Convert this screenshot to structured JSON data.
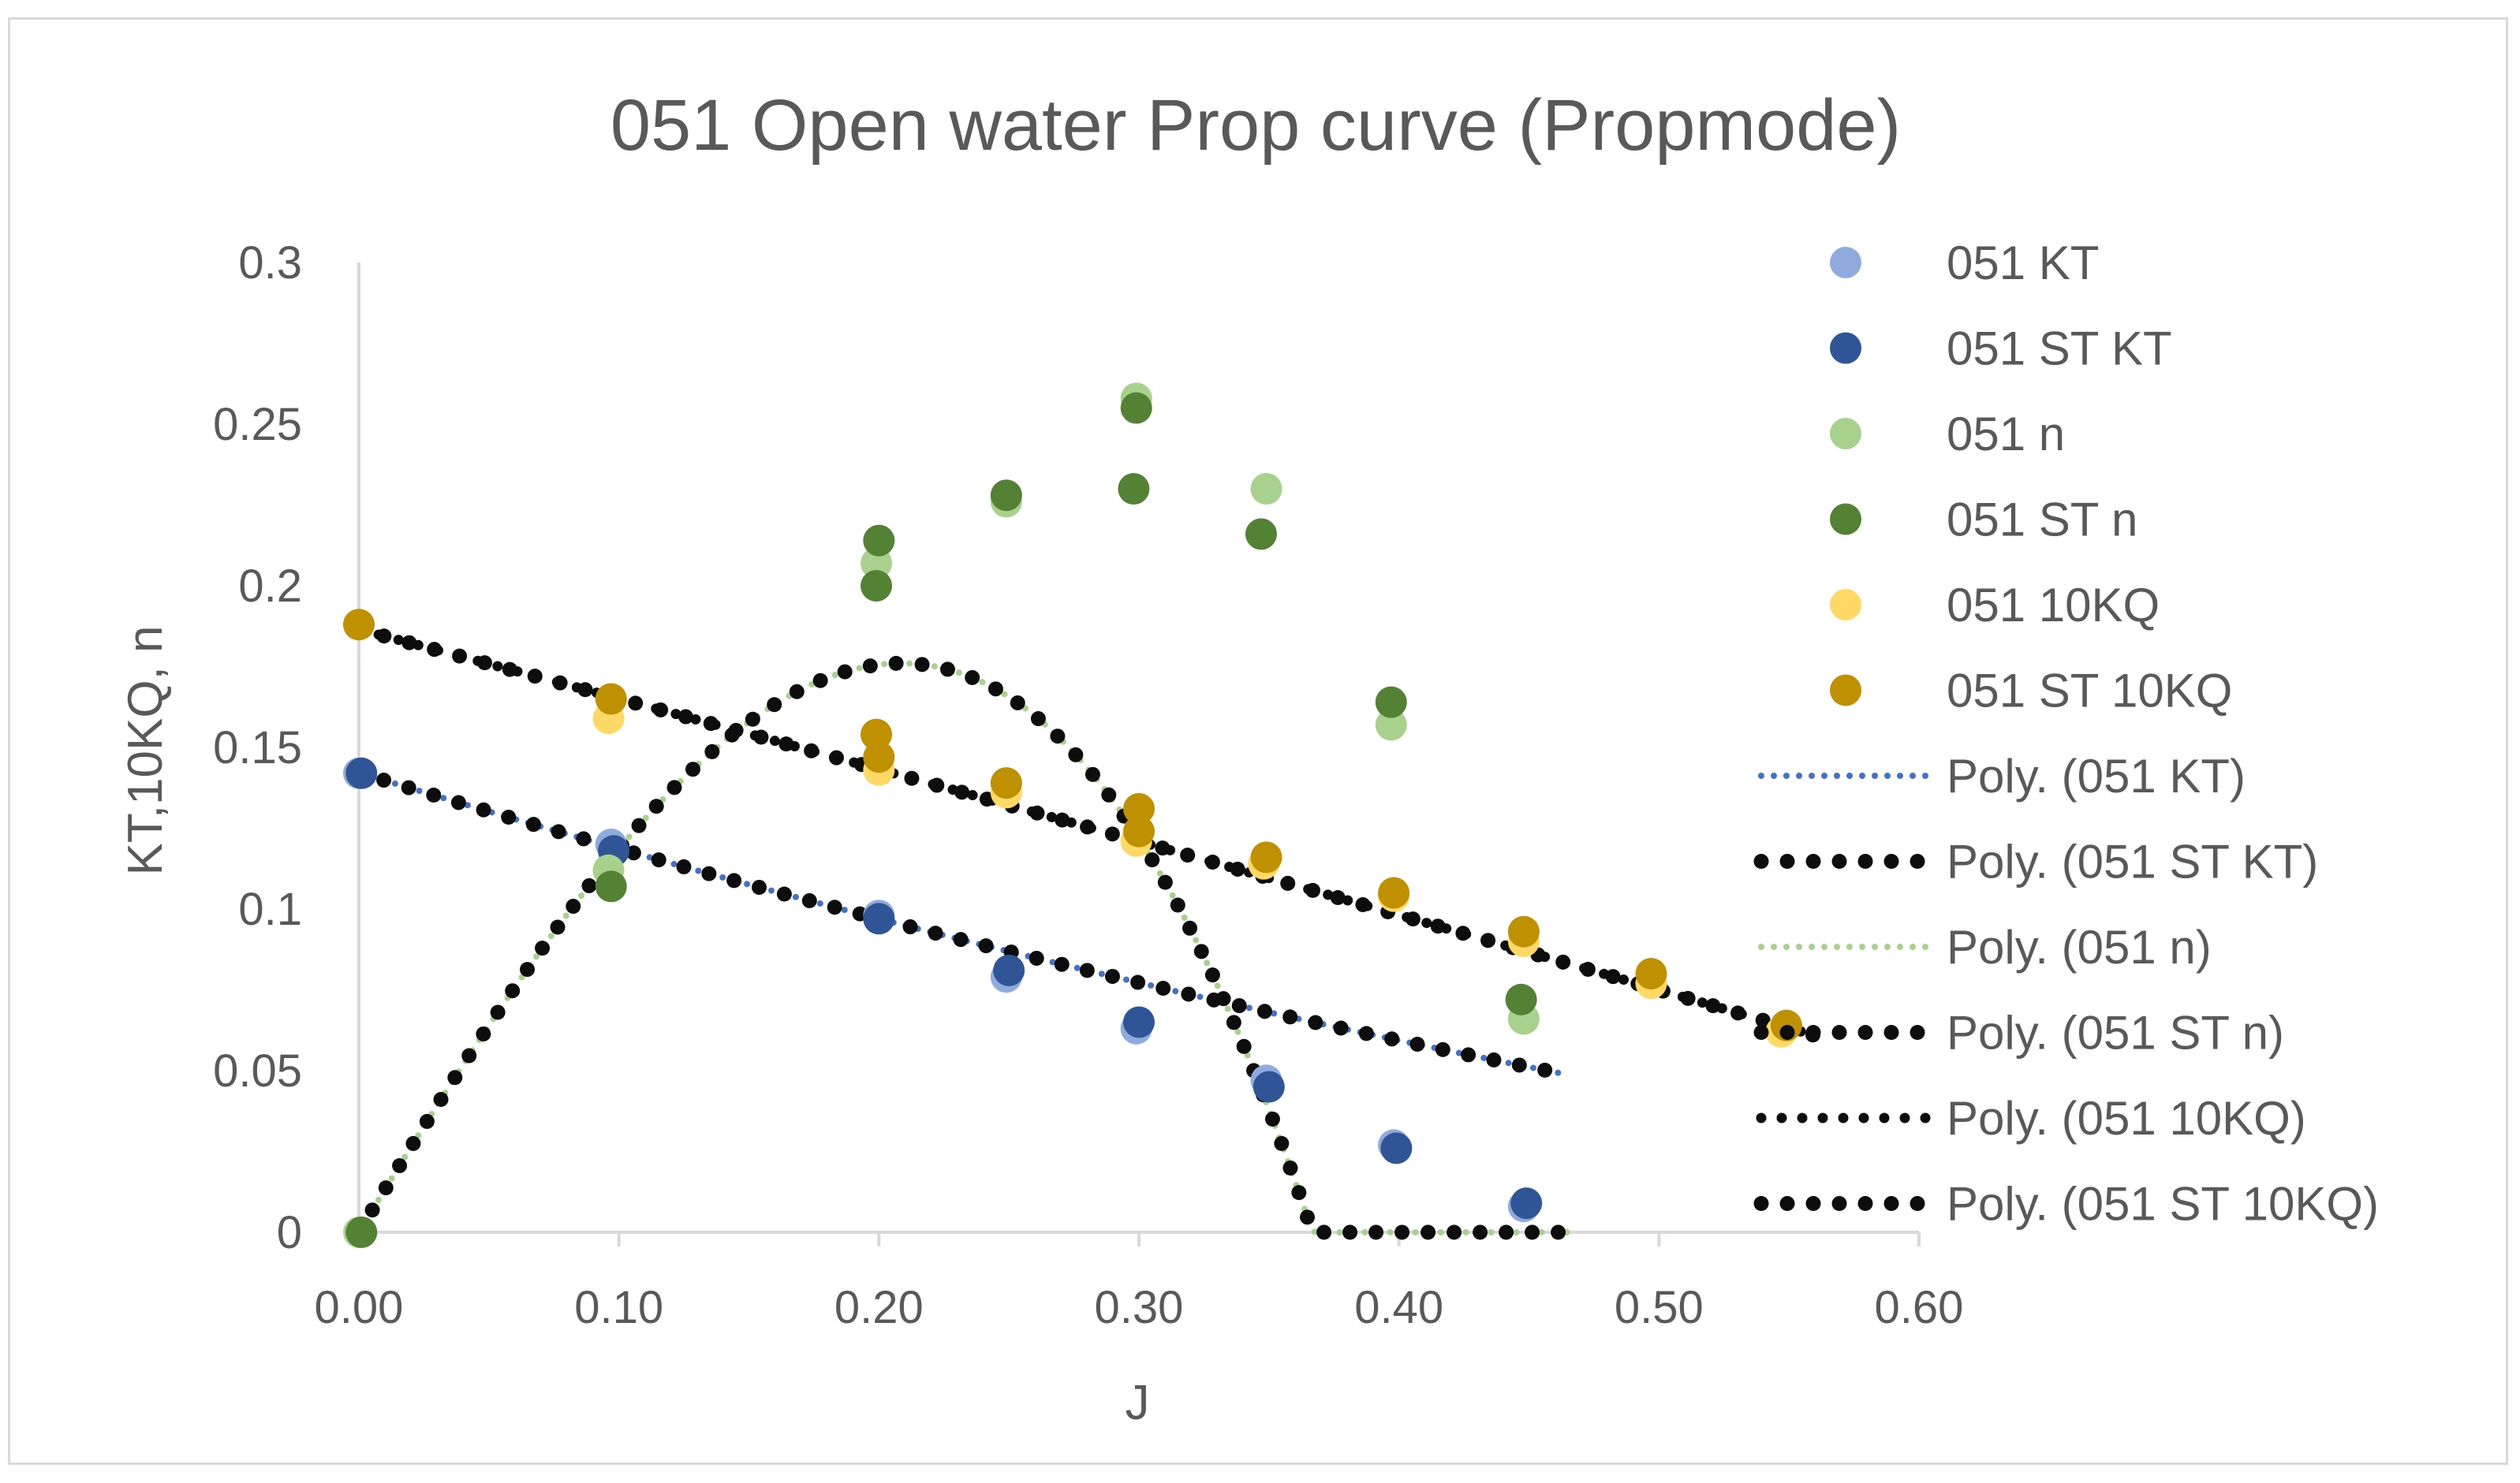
{
  "chart_data": {
    "type": "scatter",
    "title": "051 Open water Prop curve (Propmode)",
    "xlabel": "J",
    "ylabel": "KT,10KQ, n",
    "xlim": [
      0,
      0.6
    ],
    "ylim": [
      0,
      0.3
    ],
    "x_ticks": [
      "0.00",
      "0.10",
      "0.20",
      "0.30",
      "0.40",
      "0.50",
      "0.60"
    ],
    "y_ticks": [
      "0",
      "0.05",
      "0.1",
      "0.15",
      "0.2",
      "0.25",
      "0.3"
    ],
    "grid": false,
    "legend_position": "right",
    "series": [
      {
        "name": "051 KT",
        "kind": "points",
        "color": "#8faadc",
        "points": [
          [
            0.0,
            0.142
          ],
          [
            0.097,
            0.12
          ],
          [
            0.2,
            0.098
          ],
          [
            0.249,
            0.079
          ],
          [
            0.299,
            0.063
          ],
          [
            0.349,
            0.047
          ],
          [
            0.398,
            0.027
          ],
          [
            0.448,
            0.008
          ]
        ]
      },
      {
        "name": "051 ST KT",
        "kind": "points",
        "color": "#2f5597",
        "points": [
          [
            0.001,
            0.142
          ],
          [
            0.098,
            0.118
          ],
          [
            0.2,
            0.097
          ],
          [
            0.25,
            0.081
          ],
          [
            0.3,
            0.065
          ],
          [
            0.35,
            0.045
          ],
          [
            0.399,
            0.026
          ],
          [
            0.449,
            0.009
          ]
        ]
      },
      {
        "name": "051 n",
        "kind": "points",
        "color": "#a9d18e",
        "points": [
          [
            0.0,
            0.0
          ],
          [
            0.096,
            0.112
          ],
          [
            0.199,
            0.207
          ],
          [
            0.249,
            0.226
          ],
          [
            0.299,
            0.258
          ],
          [
            0.349,
            0.23
          ],
          [
            0.397,
            0.157
          ],
          [
            0.448,
            0.066
          ]
        ]
      },
      {
        "name": "051 ST n",
        "kind": "points",
        "color": "#548235",
        "points": [
          [
            0.001,
            0.0
          ],
          [
            0.097,
            0.107
          ],
          [
            0.2,
            0.214
          ],
          [
            0.199,
            0.2
          ],
          [
            0.249,
            0.228
          ],
          [
            0.299,
            0.255
          ],
          [
            0.298,
            0.23
          ],
          [
            0.347,
            0.216
          ],
          [
            0.397,
            0.164
          ],
          [
            0.447,
            0.072
          ]
        ]
      },
      {
        "name": "051 10KQ",
        "kind": "points",
        "color": "#ffd966",
        "points": [
          [
            0.0,
            0.188
          ],
          [
            0.096,
            0.159
          ],
          [
            0.2,
            0.143
          ],
          [
            0.249,
            0.136
          ],
          [
            0.299,
            0.121
          ],
          [
            0.348,
            0.114
          ],
          [
            0.398,
            0.104
          ],
          [
            0.448,
            0.09
          ],
          [
            0.497,
            0.077
          ],
          [
            0.547,
            0.062
          ]
        ]
      },
      {
        "name": "051 ST 10KQ",
        "kind": "points",
        "color": "#bf9000",
        "points": [
          [
            0.0,
            0.188
          ],
          [
            0.097,
            0.165
          ],
          [
            0.199,
            0.154
          ],
          [
            0.2,
            0.147
          ],
          [
            0.249,
            0.139
          ],
          [
            0.3,
            0.131
          ],
          [
            0.3,
            0.124
          ],
          [
            0.349,
            0.116
          ],
          [
            0.398,
            0.105
          ],
          [
            0.448,
            0.093
          ],
          [
            0.497,
            0.08
          ],
          [
            0.549,
            0.064
          ]
        ]
      },
      {
        "name": "Poly. (051 KT)",
        "kind": "trend",
        "style": "small-dots",
        "color": "#4472c4",
        "coef": [
          0.1422,
          -0.245,
          0.0947
        ],
        "range": [
          0,
          0.463
        ]
      },
      {
        "name": "Poly. (051 ST KT)",
        "kind": "trend",
        "style": "large-dots",
        "color": "#0d0d0d",
        "coef": [
          0.1422,
          -0.245,
          0.0947
        ],
        "range": [
          0,
          0.463
        ]
      },
      {
        "name": "Poly. (051 n)",
        "kind": "trend",
        "style": "small-dots",
        "color": "#a9d18e",
        "coef": [
          0.0,
          1.33,
          -0.62,
          -8.2
        ],
        "range": [
          0,
          0.467
        ]
      },
      {
        "name": "Poly. (051 ST n)",
        "kind": "trend",
        "style": "large-dots",
        "color": "#0d0d0d",
        "coef": [
          0.0,
          1.33,
          -0.62,
          -8.2
        ],
        "range": [
          0,
          0.467
        ]
      },
      {
        "name": "Poly. (051 10KQ)",
        "kind": "trend",
        "style": "medium-dots",
        "color": "#0d0d0d",
        "coef": [
          0.1865,
          -0.212,
          -0.0221
        ],
        "range": [
          0,
          0.56
        ]
      },
      {
        "name": "Poly. (051 ST 10KQ)",
        "kind": "trend",
        "style": "large-dots",
        "color": "#0d0d0d",
        "coef": [
          0.1865,
          -0.212,
          -0.0221
        ],
        "range": [
          0,
          0.56
        ]
      }
    ]
  }
}
